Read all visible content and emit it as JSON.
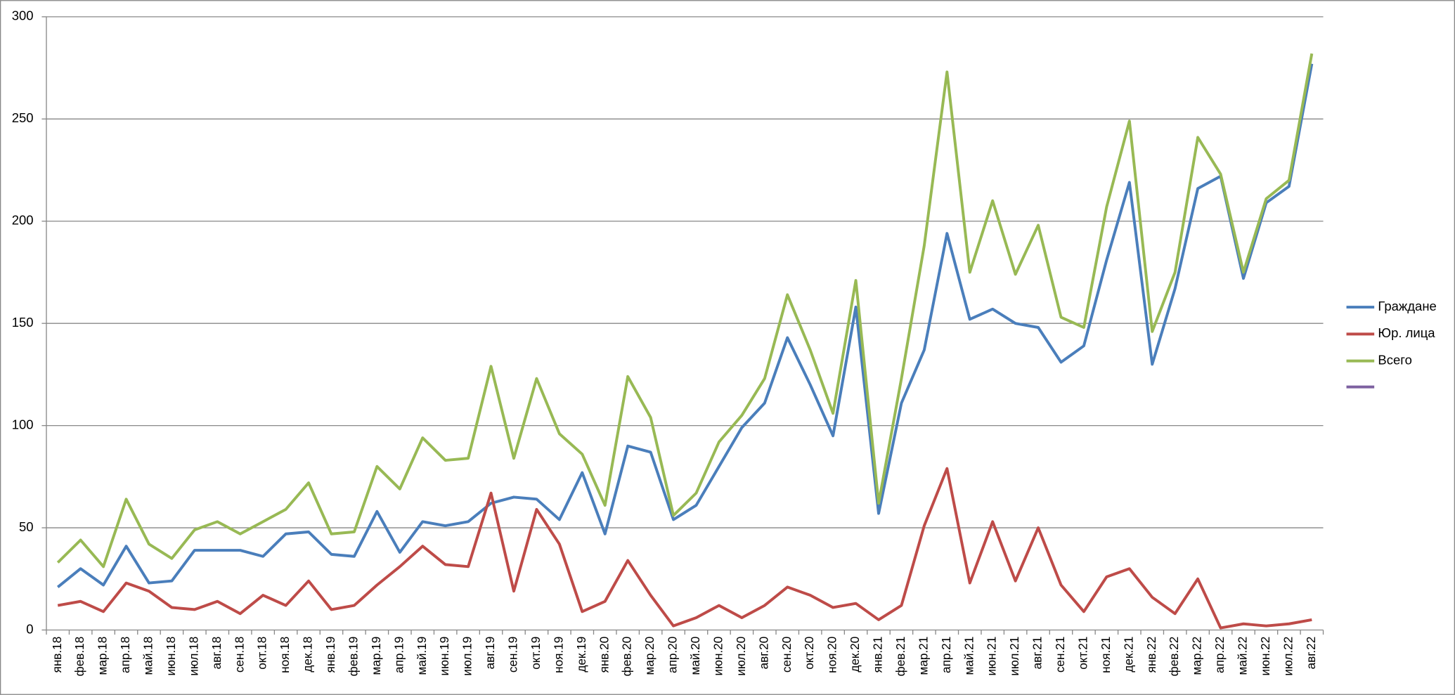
{
  "chart_data": {
    "type": "line",
    "categories": [
      "янв.18",
      "фев.18",
      "мар.18",
      "апр.18",
      "май.18",
      "июн.18",
      "июл.18",
      "авг.18",
      "сен.18",
      "окт.18",
      "ноя.18",
      "дек.18",
      "янв.19",
      "фев.19",
      "мар.19",
      "апр.19",
      "май.19",
      "июн.19",
      "июл.19",
      "авг.19",
      "сен.19",
      "окт.19",
      "ноя.19",
      "дек.19",
      "янв.20",
      "фев.20",
      "мар.20",
      "апр.20",
      "май.20",
      "июн.20",
      "июл.20",
      "авг.20",
      "сен.20",
      "окт.20",
      "ноя.20",
      "дек.20",
      "янв.21",
      "фев.21",
      "мар.21",
      "апр.21",
      "май.21",
      "июн.21",
      "июл.21",
      "авг.21",
      "сен.21",
      "окт.21",
      "ноя.21",
      "дек.21",
      "янв.22",
      "фев.22",
      "мар.22",
      "апр.22",
      "май.22",
      "июн.22",
      "июл.22",
      "авг.22"
    ],
    "series": [
      {
        "name": "Граждане",
        "color": "#4a7ebb",
        "values": [
          21,
          30,
          22,
          41,
          23,
          24,
          39,
          39,
          39,
          36,
          47,
          48,
          37,
          36,
          58,
          38,
          53,
          51,
          53,
          62,
          65,
          64,
          54,
          77,
          47,
          90,
          87,
          54,
          61,
          80,
          99,
          111,
          143,
          120,
          95,
          158,
          57,
          111,
          137,
          194,
          152,
          157,
          150,
          148,
          131,
          139,
          181,
          219,
          130,
          167,
          216,
          222,
          172,
          209,
          217,
          277
        ]
      },
      {
        "name": "Юр. лица",
        "color": "#be4b48",
        "values": [
          12,
          14,
          9,
          23,
          19,
          11,
          10,
          14,
          8,
          17,
          12,
          24,
          10,
          12,
          22,
          31,
          41,
          32,
          31,
          67,
          19,
          59,
          42,
          9,
          14,
          34,
          17,
          2,
          6,
          12,
          6,
          12,
          21,
          17,
          11,
          13,
          5,
          12,
          51,
          79,
          23,
          53,
          24,
          50,
          22,
          9,
          26,
          30,
          16,
          8,
          25,
          1,
          3,
          2,
          3,
          5
        ]
      },
      {
        "name": "Всего",
        "color": "#98b954",
        "values": [
          33,
          44,
          31,
          64,
          42,
          35,
          49,
          53,
          47,
          53,
          59,
          72,
          47,
          48,
          80,
          69,
          94,
          83,
          84,
          129,
          84,
          123,
          96,
          86,
          61,
          124,
          104,
          56,
          67,
          92,
          105,
          123,
          164,
          137,
          106,
          171,
          62,
          123,
          188,
          273,
          175,
          210,
          174,
          198,
          153,
          148,
          207,
          249,
          146,
          175,
          241,
          223,
          175,
          211,
          220,
          282
        ]
      }
    ],
    "ylim": [
      0,
      300
    ],
    "yticks": [
      0,
      50,
      100,
      150,
      200,
      250,
      300
    ],
    "grid": true,
    "legend": "right"
  }
}
